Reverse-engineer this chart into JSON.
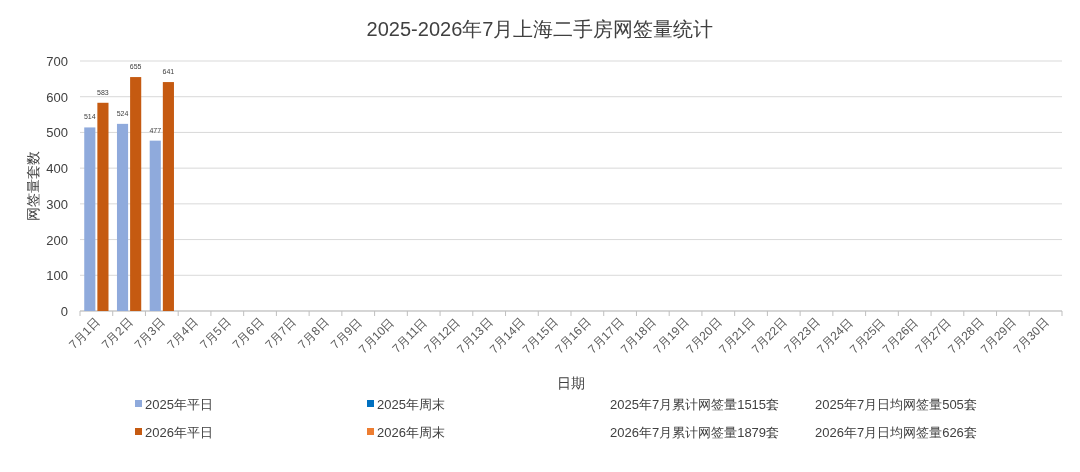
{
  "chart_data": {
    "type": "bar",
    "title": "2025-2026年7月上海二手房网签量统计",
    "xlabel": "日期",
    "ylabel": "网签量套数",
    "categories": [
      "7月1日",
      "7月2日",
      "7月3日",
      "7月4日",
      "7月5日",
      "7月6日",
      "7月7日",
      "7月8日",
      "7月9日",
      "7月10日",
      "7月11日",
      "7月12日",
      "7月13日",
      "7月14日",
      "7月15日",
      "7月16日",
      "7月17日",
      "7月18日",
      "7月19日",
      "7月20日",
      "7月21日",
      "7月22日",
      "7月23日",
      "7月24日",
      "7月25日",
      "7月26日",
      "7月27日",
      "7月28日",
      "7月29日",
      "7月30日"
    ],
    "series": [
      {
        "name": "2025年平日",
        "color": "#8faadc",
        "values": [
          514,
          524,
          477,
          null,
          null,
          null,
          null,
          null,
          null,
          null,
          null,
          null,
          null,
          null,
          null,
          null,
          null,
          null,
          null,
          null,
          null,
          null,
          null,
          null,
          null,
          null,
          null,
          null,
          null,
          null
        ]
      },
      {
        "name": "2025年周末",
        "color": "#0070c0",
        "values": [
          null,
          null,
          null,
          null,
          null,
          null,
          null,
          null,
          null,
          null,
          null,
          null,
          null,
          null,
          null,
          null,
          null,
          null,
          null,
          null,
          null,
          null,
          null,
          null,
          null,
          null,
          null,
          null,
          null,
          null
        ]
      },
      {
        "name": "2026年平日",
        "color": "#c55a11",
        "values": [
          583,
          655,
          641,
          null,
          null,
          null,
          null,
          null,
          null,
          null,
          null,
          null,
          null,
          null,
          null,
          null,
          null,
          null,
          null,
          null,
          null,
          null,
          null,
          null,
          null,
          null,
          null,
          null,
          null,
          null
        ]
      },
      {
        "name": "2026年周末",
        "color": "#ed7d31",
        "values": [
          null,
          null,
          null,
          null,
          null,
          null,
          null,
          null,
          null,
          null,
          null,
          null,
          null,
          null,
          null,
          null,
          null,
          null,
          null,
          null,
          null,
          null,
          null,
          null,
          null,
          null,
          null,
          null,
          null,
          null
        ]
      }
    ],
    "annotations": [
      "2025年7月累计网签量1515套",
      "2025年7月日均网签量505套",
      "2026年7月累计网签量1879套",
      "2026年7月日均网签量626套"
    ],
    "ylim": [
      0,
      700
    ],
    "yticks": [
      0,
      100,
      200,
      300,
      400,
      500,
      600,
      700
    ],
    "grid": "y",
    "data_labels": true,
    "legend": "bottom"
  }
}
